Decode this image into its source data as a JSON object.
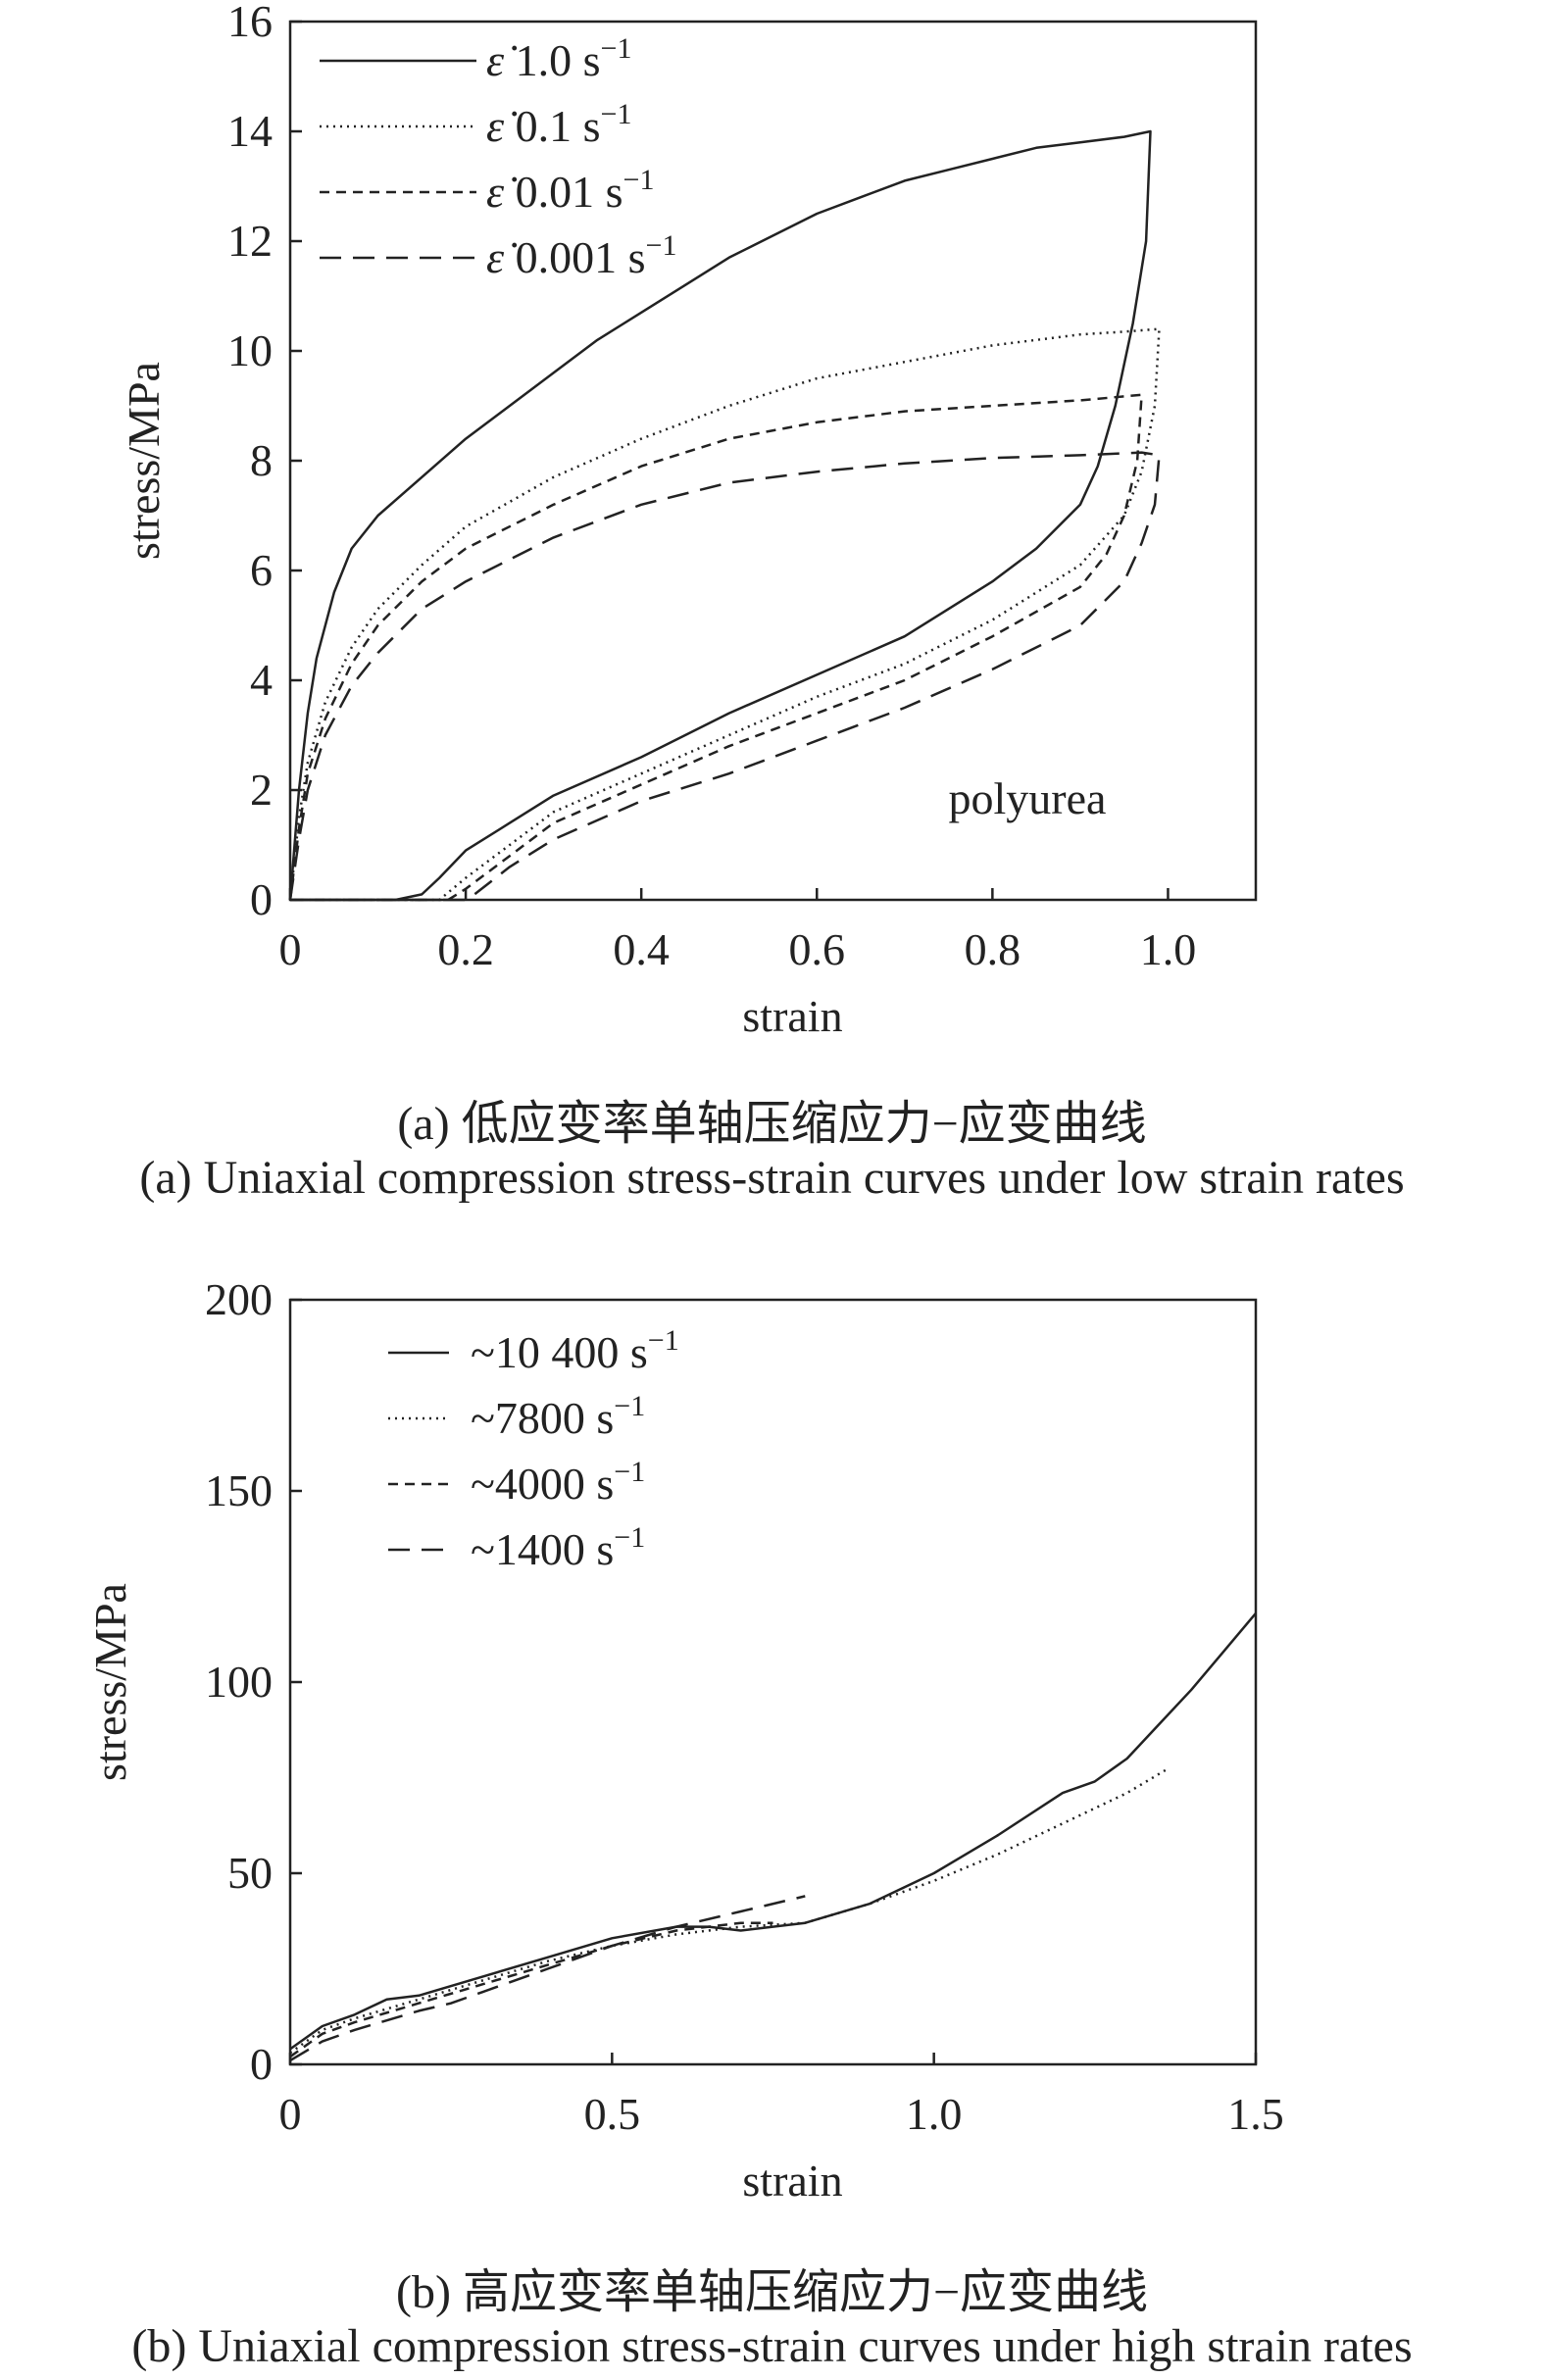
{
  "chart_data": [
    {
      "type": "line",
      "panel": "a",
      "xlabel": "strain",
      "ylabel": "stress/MPa",
      "xlim": [
        0,
        1.1
      ],
      "ylim": [
        0,
        16
      ],
      "xticks": [
        0,
        0.2,
        0.4,
        0.6,
        0.8,
        1.0
      ],
      "xtick_labels": [
        "0",
        "0.2",
        "0.4",
        "0.6",
        "0.8",
        "1.0"
      ],
      "yticks": [
        0,
        2,
        4,
        6,
        8,
        10,
        12,
        14,
        16
      ],
      "ytick_labels": [
        "0",
        "2",
        "4",
        "6",
        "8",
        "10",
        "12",
        "14",
        "16"
      ],
      "annotation": "polyurea",
      "legend_position": "top-left",
      "caption_cn": "(a) 低应变率单轴压缩应力−应变曲线",
      "caption_en": "(a) Uniaxial compression stress-strain curves under low strain rates",
      "series": [
        {
          "name": "ε̇ 1.0 s⁻¹",
          "legend": {
            "symbol": "ε̇",
            "value": "1.0 s",
            "exp": "−1"
          },
          "style": "solid",
          "points": [
            [
              0,
              0
            ],
            [
              0.01,
              2.0
            ],
            [
              0.02,
              3.4
            ],
            [
              0.03,
              4.4
            ],
            [
              0.05,
              5.6
            ],
            [
              0.07,
              6.4
            ],
            [
              0.1,
              7.0
            ],
            [
              0.15,
              7.7
            ],
            [
              0.2,
              8.4
            ],
            [
              0.25,
              9.0
            ],
            [
              0.3,
              9.6
            ],
            [
              0.35,
              10.2
            ],
            [
              0.4,
              10.7
            ],
            [
              0.45,
              11.2
            ],
            [
              0.5,
              11.7
            ],
            [
              0.55,
              12.1
            ],
            [
              0.6,
              12.5
            ],
            [
              0.65,
              12.8
            ],
            [
              0.7,
              13.1
            ],
            [
              0.75,
              13.3
            ],
            [
              0.8,
              13.5
            ],
            [
              0.85,
              13.7
            ],
            [
              0.9,
              13.8
            ],
            [
              0.95,
              13.9
            ],
            [
              0.98,
              14.0
            ],
            [
              0.975,
              12.0
            ],
            [
              0.96,
              10.5
            ],
            [
              0.94,
              9.0
            ],
            [
              0.92,
              7.9
            ],
            [
              0.9,
              7.2
            ],
            [
              0.85,
              6.4
            ],
            [
              0.8,
              5.8
            ],
            [
              0.7,
              4.8
            ],
            [
              0.6,
              4.1
            ],
            [
              0.5,
              3.4
            ],
            [
              0.4,
              2.6
            ],
            [
              0.3,
              1.9
            ],
            [
              0.25,
              1.4
            ],
            [
              0.2,
              0.9
            ],
            [
              0.17,
              0.4
            ],
            [
              0.15,
              0.1
            ],
            [
              0.12,
              0
            ],
            [
              0,
              0
            ]
          ]
        },
        {
          "name": "ε̇ 0.1 s⁻¹",
          "legend": {
            "symbol": "ε̇",
            "value": "0.1 s",
            "exp": "−1"
          },
          "style": "dotted",
          "points": [
            [
              0,
              0
            ],
            [
              0.01,
              1.5
            ],
            [
              0.02,
              2.5
            ],
            [
              0.04,
              3.6
            ],
            [
              0.07,
              4.6
            ],
            [
              0.1,
              5.3
            ],
            [
              0.15,
              6.1
            ],
            [
              0.2,
              6.8
            ],
            [
              0.3,
              7.7
            ],
            [
              0.4,
              8.4
            ],
            [
              0.5,
              9.0
            ],
            [
              0.6,
              9.5
            ],
            [
              0.7,
              9.8
            ],
            [
              0.8,
              10.1
            ],
            [
              0.9,
              10.3
            ],
            [
              0.95,
              10.35
            ],
            [
              0.99,
              10.4
            ],
            [
              0.985,
              9.0
            ],
            [
              0.97,
              7.8
            ],
            [
              0.95,
              7.0
            ],
            [
              0.9,
              6.1
            ],
            [
              0.8,
              5.1
            ],
            [
              0.7,
              4.3
            ],
            [
              0.6,
              3.7
            ],
            [
              0.5,
              3.0
            ],
            [
              0.4,
              2.3
            ],
            [
              0.3,
              1.6
            ],
            [
              0.25,
              1.0
            ],
            [
              0.2,
              0.4
            ],
            [
              0.17,
              0
            ],
            [
              0,
              0
            ]
          ]
        },
        {
          "name": "ε̇ 0.01 s⁻¹",
          "legend": {
            "symbol": "ε̇",
            "value": "0.01 s",
            "exp": "−1"
          },
          "style": "short-dash",
          "points": [
            [
              0,
              0
            ],
            [
              0.01,
              1.3
            ],
            [
              0.02,
              2.3
            ],
            [
              0.04,
              3.3
            ],
            [
              0.07,
              4.3
            ],
            [
              0.1,
              5.0
            ],
            [
              0.15,
              5.8
            ],
            [
              0.2,
              6.4
            ],
            [
              0.3,
              7.2
            ],
            [
              0.4,
              7.9
            ],
            [
              0.5,
              8.4
            ],
            [
              0.6,
              8.7
            ],
            [
              0.7,
              8.9
            ],
            [
              0.8,
              9.0
            ],
            [
              0.9,
              9.1
            ],
            [
              0.97,
              9.2
            ],
            [
              0.965,
              8.0
            ],
            [
              0.95,
              7.0
            ],
            [
              0.93,
              6.3
            ],
            [
              0.9,
              5.7
            ],
            [
              0.8,
              4.8
            ],
            [
              0.7,
              4.0
            ],
            [
              0.6,
              3.4
            ],
            [
              0.5,
              2.8
            ],
            [
              0.4,
              2.1
            ],
            [
              0.3,
              1.4
            ],
            [
              0.25,
              0.8
            ],
            [
              0.2,
              0.2
            ],
            [
              0.18,
              0
            ],
            [
              0,
              0
            ]
          ]
        },
        {
          "name": "ε̇ 0.001 s⁻¹",
          "legend": {
            "symbol": "ε̇",
            "value": "0.001 s",
            "exp": "−1"
          },
          "style": "long-dash",
          "points": [
            [
              0,
              0
            ],
            [
              0.01,
              1.1
            ],
            [
              0.02,
              2.0
            ],
            [
              0.04,
              3.0
            ],
            [
              0.07,
              3.9
            ],
            [
              0.1,
              4.5
            ],
            [
              0.15,
              5.3
            ],
            [
              0.2,
              5.8
            ],
            [
              0.3,
              6.6
            ],
            [
              0.4,
              7.2
            ],
            [
              0.5,
              7.6
            ],
            [
              0.6,
              7.8
            ],
            [
              0.7,
              7.95
            ],
            [
              0.8,
              8.05
            ],
            [
              0.9,
              8.1
            ],
            [
              0.97,
              8.15
            ],
            [
              0.99,
              8.1
            ],
            [
              0.985,
              7.2
            ],
            [
              0.97,
              6.5
            ],
            [
              0.95,
              5.8
            ],
            [
              0.9,
              5.0
            ],
            [
              0.8,
              4.2
            ],
            [
              0.7,
              3.5
            ],
            [
              0.6,
              2.9
            ],
            [
              0.5,
              2.3
            ],
            [
              0.4,
              1.8
            ],
            [
              0.3,
              1.1
            ],
            [
              0.25,
              0.6
            ],
            [
              0.21,
              0.1
            ],
            [
              0.2,
              0
            ],
            [
              0,
              0
            ]
          ]
        }
      ]
    },
    {
      "type": "line",
      "panel": "b",
      "xlabel": "strain",
      "ylabel": "stress/MPa",
      "xlim": [
        0,
        1.5
      ],
      "ylim": [
        0,
        200
      ],
      "xticks": [
        0,
        0.5,
        1.0,
        1.5
      ],
      "xtick_labels": [
        "0",
        "0.5",
        "1.0",
        "1.5"
      ],
      "yticks": [
        0,
        50,
        100,
        150,
        200
      ],
      "ytick_labels": [
        "0",
        "50",
        "100",
        "150",
        "200"
      ],
      "legend_position": "top-left",
      "caption_cn": "(b) 高应变率单轴压缩应力−应变曲线",
      "caption_en": "(b) Uniaxial compression stress-strain curves under high strain rates",
      "series": [
        {
          "name": "~10 400 s⁻¹",
          "legend": {
            "value": "~10 400 s",
            "exp": "−1"
          },
          "style": "solid",
          "points": [
            [
              0,
              4
            ],
            [
              0.05,
              10
            ],
            [
              0.1,
              13
            ],
            [
              0.15,
              17
            ],
            [
              0.2,
              18
            ],
            [
              0.3,
              23
            ],
            [
              0.4,
              28
            ],
            [
              0.5,
              33
            ],
            [
              0.6,
              36
            ],
            [
              0.65,
              36
            ],
            [
              0.7,
              35
            ],
            [
              0.8,
              37
            ],
            [
              0.9,
              42
            ],
            [
              1.0,
              50
            ],
            [
              1.1,
              60
            ],
            [
              1.2,
              71
            ],
            [
              1.25,
              74
            ],
            [
              1.3,
              80
            ],
            [
              1.35,
              89
            ],
            [
              1.4,
              98
            ],
            [
              1.45,
              108
            ],
            [
              1.5,
              118
            ]
          ]
        },
        {
          "name": "~7800 s⁻¹",
          "legend": {
            "value": "~7800 s",
            "exp": "−1"
          },
          "style": "dotted",
          "points": [
            [
              0,
              3
            ],
            [
              0.05,
              9
            ],
            [
              0.1,
              12
            ],
            [
              0.2,
              17
            ],
            [
              0.3,
              22
            ],
            [
              0.4,
              27
            ],
            [
              0.5,
              31
            ],
            [
              0.6,
              34
            ],
            [
              0.7,
              36
            ],
            [
              0.8,
              37
            ],
            [
              0.9,
              42
            ],
            [
              1.0,
              48
            ],
            [
              1.1,
              55
            ],
            [
              1.2,
              63
            ],
            [
              1.3,
              71
            ],
            [
              1.36,
              77
            ]
          ]
        },
        {
          "name": "~4000 s⁻¹",
          "legend": {
            "value": "~4000 s",
            "exp": "−1"
          },
          "style": "short-dash",
          "points": [
            [
              0,
              2
            ],
            [
              0.05,
              8
            ],
            [
              0.1,
              11
            ],
            [
              0.2,
              16
            ],
            [
              0.3,
              21
            ],
            [
              0.4,
              26
            ],
            [
              0.5,
              31
            ],
            [
              0.6,
              35
            ],
            [
              0.7,
              37
            ],
            [
              0.75,
              37
            ]
          ]
        },
        {
          "name": "~1400 s⁻¹",
          "legend": {
            "value": "~1400 s",
            "exp": "−1"
          },
          "style": "long-dash",
          "points": [
            [
              0,
              1
            ],
            [
              0.05,
              6
            ],
            [
              0.1,
              9
            ],
            [
              0.2,
              14
            ],
            [
              0.25,
              16
            ],
            [
              0.3,
              19
            ],
            [
              0.4,
              25
            ],
            [
              0.5,
              31
            ],
            [
              0.6,
              36
            ],
            [
              0.7,
              40
            ],
            [
              0.8,
              44
            ]
          ]
        }
      ]
    }
  ]
}
